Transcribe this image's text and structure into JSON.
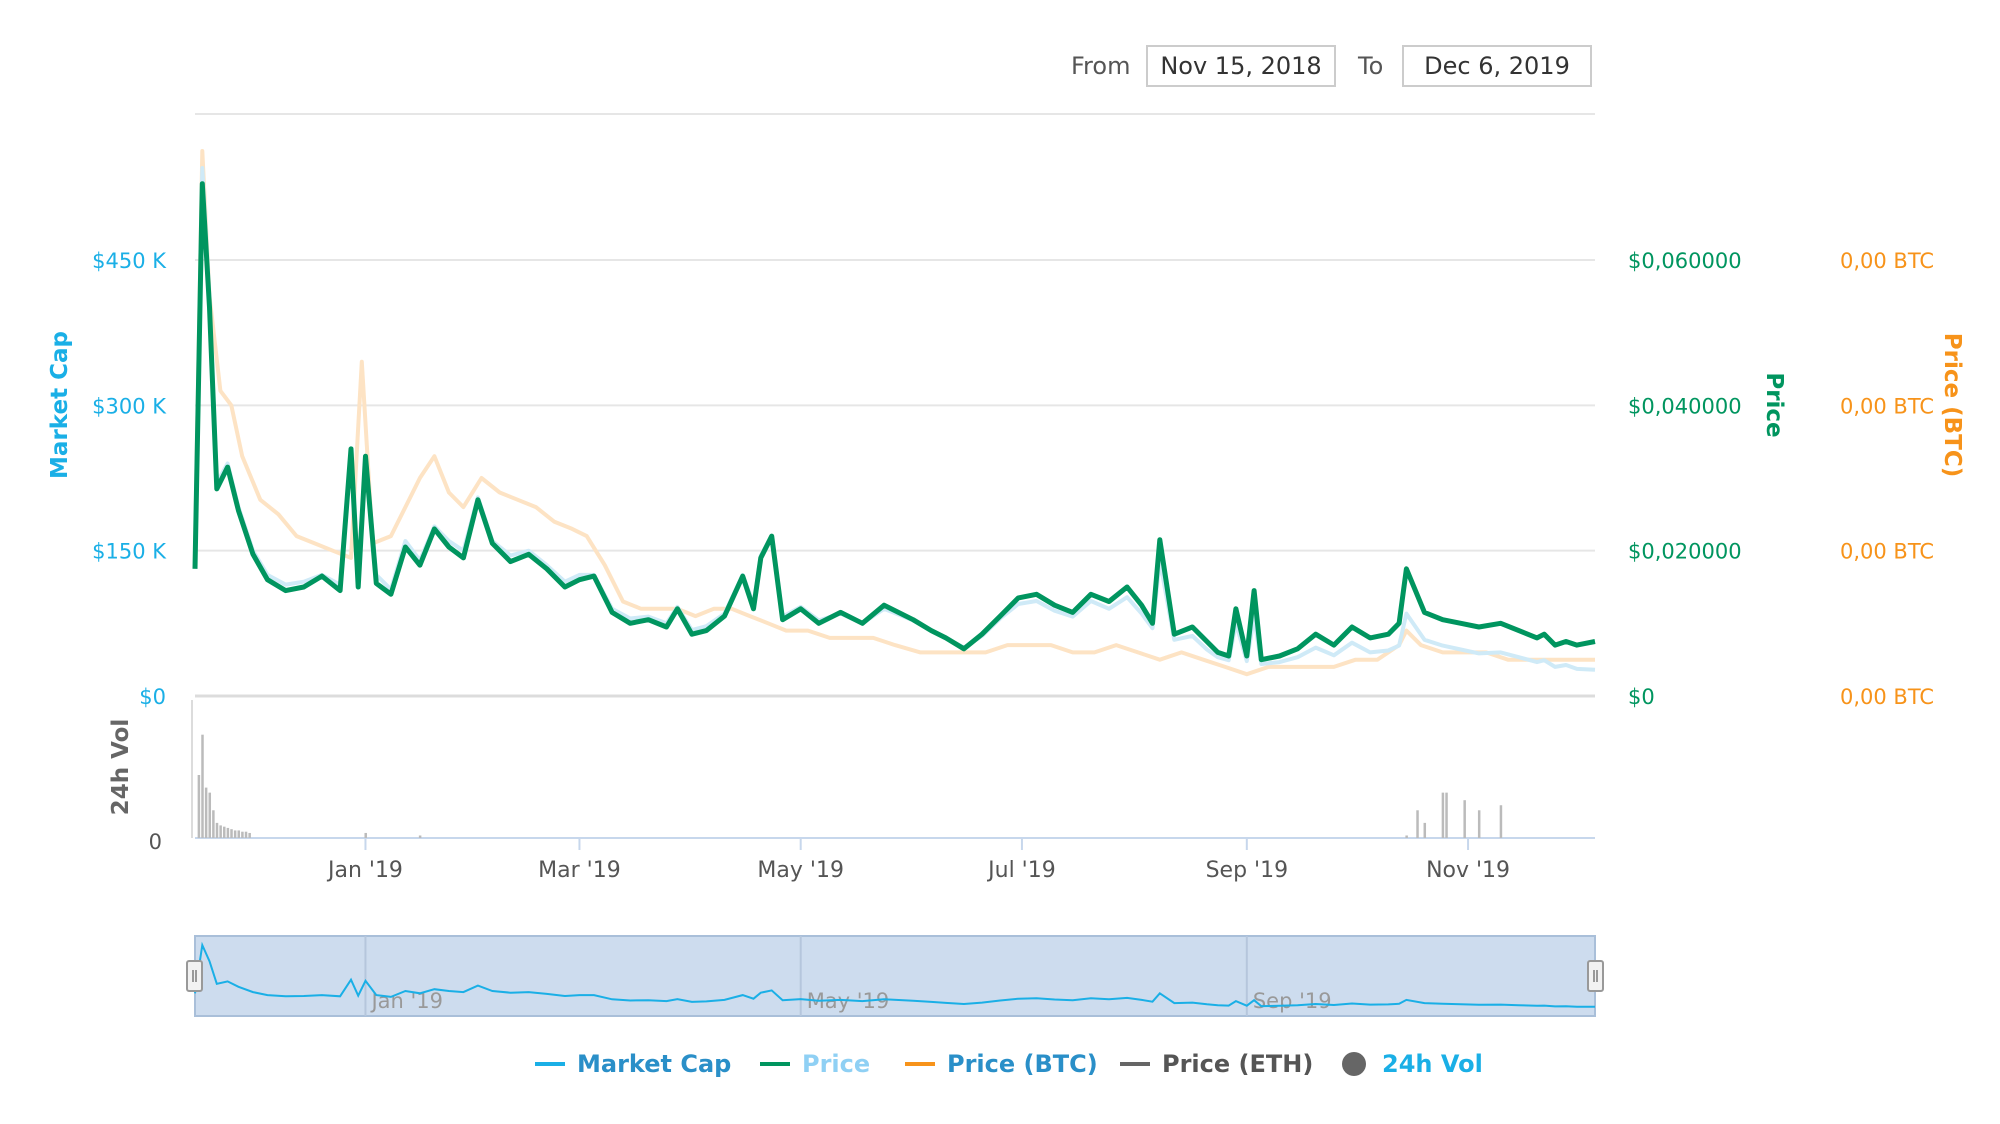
{
  "date_range": {
    "from_label": "From",
    "from_value": "Nov 15, 2018",
    "to_label": "To",
    "to_value": "Dec 6, 2019"
  },
  "colors": {
    "market_cap": "#1aafe6",
    "market_cap_area": "#cfeaf7",
    "price": "#00955f",
    "price_btc": "#f7931a",
    "price_btc_line": "#fde3c4",
    "price_eth": "#666666",
    "volume": "#bbbbbb",
    "navigator_fill": "#cddcee",
    "grid": "#e6e6e6"
  },
  "axis_titles": {
    "left": "Market Cap",
    "right_price": "Price",
    "right_btc": "Price (BTC)",
    "volume": "24h Vol"
  },
  "legend": [
    {
      "label": "Market Cap",
      "color": "#1aafe6",
      "symbol": "line"
    },
    {
      "label": "Price",
      "color": "#00955f",
      "symbol": "line",
      "label_color": "#8fd0f4"
    },
    {
      "label": "Price (BTC)",
      "color": "#f7931a",
      "symbol": "line"
    },
    {
      "label": "Price (ETH)",
      "color": "#666666",
      "symbol": "line"
    },
    {
      "label": "24h Vol",
      "color": "#666666",
      "symbol": "dot"
    }
  ],
  "chart_data": {
    "type": "line",
    "x_range": [
      "2018-11-15",
      "2019-12-06"
    ],
    "x_tick_labels": [
      "Jan '19",
      "Mar '19",
      "May '19",
      "Jul '19",
      "Sep '19",
      "Nov '19"
    ],
    "x_tick_dates": [
      "2019-01-01",
      "2019-03-01",
      "2019-05-01",
      "2019-07-01",
      "2019-09-01",
      "2019-11-01"
    ],
    "navigator_tick_labels": [
      "Jan '19",
      "May '19",
      "Sep '19"
    ],
    "navigator_tick_dates": [
      "2019-01-01",
      "2019-05-01",
      "2019-09-01"
    ],
    "left_axis": {
      "label": "Market Cap",
      "ylim": [
        0,
        600000
      ],
      "tick_values": [
        0,
        150000,
        300000,
        450000
      ],
      "tick_labels": [
        "$0",
        "$150 K",
        "$300 K",
        "$450 K"
      ]
    },
    "right_axis_price": {
      "label": "Price",
      "ylim": [
        0,
        0.08
      ],
      "tick_values": [
        0,
        0.02,
        0.04,
        0.06
      ],
      "tick_labels": [
        "$0",
        "$0,020000",
        "$0,040000",
        "$0,060000"
      ]
    },
    "right_axis_btc": {
      "label": "Price (BTC)",
      "tick_labels": [
        "0,00 BTC",
        "0,00 BTC",
        "0,00 BTC",
        "0,00 BTC"
      ]
    },
    "volume_axis": {
      "label": "24h Vol",
      "tick_labels": [
        "0"
      ]
    },
    "grid": true,
    "legend_position": "bottom",
    "series": [
      {
        "name": "Price",
        "axis": "right_price",
        "x": [
          "2018-11-15",
          "2018-11-17",
          "2018-11-19",
          "2018-11-21",
          "2018-11-24",
          "2018-11-27",
          "2018-12-01",
          "2018-12-05",
          "2018-12-10",
          "2018-12-15",
          "2018-12-20",
          "2018-12-25",
          "2018-12-28",
          "2018-12-30",
          "2019-01-01",
          "2019-01-04",
          "2019-01-08",
          "2019-01-12",
          "2019-01-16",
          "2019-01-20",
          "2019-01-24",
          "2019-01-28",
          "2019-02-01",
          "2019-02-05",
          "2019-02-10",
          "2019-02-15",
          "2019-02-20",
          "2019-02-25",
          "2019-03-01",
          "2019-03-05",
          "2019-03-10",
          "2019-03-15",
          "2019-03-20",
          "2019-03-25",
          "2019-03-28",
          "2019-04-01",
          "2019-04-05",
          "2019-04-10",
          "2019-04-15",
          "2019-04-18",
          "2019-04-20",
          "2019-04-23",
          "2019-04-26",
          "2019-05-01",
          "2019-05-06",
          "2019-05-12",
          "2019-05-18",
          "2019-05-24",
          "2019-06-01",
          "2019-06-06",
          "2019-06-10",
          "2019-06-15",
          "2019-06-20",
          "2019-06-25",
          "2019-06-30",
          "2019-07-05",
          "2019-07-10",
          "2019-07-15",
          "2019-07-20",
          "2019-07-25",
          "2019-07-30",
          "2019-08-03",
          "2019-08-06",
          "2019-08-08",
          "2019-08-12",
          "2019-08-17",
          "2019-08-21",
          "2019-08-24",
          "2019-08-27",
          "2019-08-29",
          "2019-09-01",
          "2019-09-03",
          "2019-09-05",
          "2019-09-10",
          "2019-09-15",
          "2019-09-20",
          "2019-09-25",
          "2019-09-30",
          "2019-10-05",
          "2019-10-10",
          "2019-10-13",
          "2019-10-15",
          "2019-10-20",
          "2019-10-25",
          "2019-10-30",
          "2019-11-04",
          "2019-11-10",
          "2019-11-15",
          "2019-11-20",
          "2019-11-22",
          "2019-11-25",
          "2019-11-28",
          "2019-12-01",
          "2019-12-06"
        ],
        "y": [
          0.0175,
          0.0705,
          0.0535,
          0.0285,
          0.0315,
          0.0255,
          0.0195,
          0.016,
          0.0145,
          0.015,
          0.0165,
          0.0145,
          0.034,
          0.015,
          0.033,
          0.0155,
          0.014,
          0.0205,
          0.018,
          0.023,
          0.0205,
          0.019,
          0.027,
          0.021,
          0.0185,
          0.0195,
          0.0175,
          0.015,
          0.016,
          0.0165,
          0.0115,
          0.01,
          0.0105,
          0.0095,
          0.012,
          0.0085,
          0.009,
          0.011,
          0.0165,
          0.012,
          0.019,
          0.022,
          0.0105,
          0.012,
          0.01,
          0.0115,
          0.01,
          0.0125,
          0.0105,
          0.009,
          0.008,
          0.0065,
          0.0085,
          0.011,
          0.0135,
          0.014,
          0.0125,
          0.0115,
          0.014,
          0.013,
          0.015,
          0.0125,
          0.01,
          0.0215,
          0.0085,
          0.0095,
          0.0075,
          0.006,
          0.0055,
          0.012,
          0.0055,
          0.0145,
          0.005,
          0.0055,
          0.0065,
          0.0085,
          0.007,
          0.0095,
          0.008,
          0.0085,
          0.01,
          0.0175,
          0.0115,
          0.0105,
          0.01,
          0.0095,
          0.01,
          0.009,
          0.008,
          0.0085,
          0.007,
          0.0075,
          0.007,
          0.0075
        ]
      },
      {
        "name": "Market Cap",
        "axis": "left",
        "x": [
          "2018-11-15",
          "2018-11-17",
          "2018-11-19",
          "2018-11-21",
          "2018-11-24",
          "2018-11-27",
          "2018-12-01",
          "2018-12-05",
          "2018-12-10",
          "2018-12-15",
          "2018-12-20",
          "2018-12-25",
          "2018-12-28",
          "2018-12-30",
          "2019-01-01",
          "2019-01-04",
          "2019-01-08",
          "2019-01-12",
          "2019-01-16",
          "2019-01-20",
          "2019-01-24",
          "2019-01-28",
          "2019-02-01",
          "2019-02-05",
          "2019-02-10",
          "2019-02-15",
          "2019-02-20",
          "2019-02-25",
          "2019-03-01",
          "2019-03-05",
          "2019-03-10",
          "2019-03-15",
          "2019-03-20",
          "2019-03-25",
          "2019-03-28",
          "2019-04-01",
          "2019-04-05",
          "2019-04-10",
          "2019-04-15",
          "2019-04-18",
          "2019-04-20",
          "2019-04-23",
          "2019-04-26",
          "2019-05-01",
          "2019-05-06",
          "2019-05-12",
          "2019-05-18",
          "2019-05-24",
          "2019-06-01",
          "2019-06-06",
          "2019-06-10",
          "2019-06-15",
          "2019-06-20",
          "2019-06-25",
          "2019-06-30",
          "2019-07-05",
          "2019-07-10",
          "2019-07-15",
          "2019-07-20",
          "2019-07-25",
          "2019-07-30",
          "2019-08-03",
          "2019-08-06",
          "2019-08-08",
          "2019-08-12",
          "2019-08-17",
          "2019-08-21",
          "2019-08-24",
          "2019-08-27",
          "2019-08-29",
          "2019-09-01",
          "2019-09-03",
          "2019-09-05",
          "2019-09-10",
          "2019-09-15",
          "2019-09-20",
          "2019-09-25",
          "2019-09-30",
          "2019-10-05",
          "2019-10-10",
          "2019-10-13",
          "2019-10-15",
          "2019-10-20",
          "2019-10-25",
          "2019-10-30",
          "2019-11-04",
          "2019-11-10",
          "2019-11-15",
          "2019-11-20",
          "2019-11-22",
          "2019-11-25",
          "2019-11-28",
          "2019-12-01",
          "2019-12-06"
        ],
        "y": [
          140000,
          545000,
          410000,
          220000,
          240000,
          195000,
          150000,
          125000,
          115000,
          118000,
          125000,
          115000,
          255000,
          120000,
          245000,
          125000,
          110000,
          160000,
          140000,
          175000,
          160000,
          150000,
          205000,
          160000,
          145000,
          150000,
          135000,
          118000,
          125000,
          125000,
          90000,
          80000,
          82000,
          75000,
          92000,
          68000,
          72000,
          85000,
          125000,
          95000,
          145000,
          165000,
          82000,
          92000,
          78000,
          85000,
          75000,
          90000,
          78000,
          68000,
          60000,
          50000,
          62000,
          80000,
          95000,
          98000,
          88000,
          82000,
          98000,
          90000,
          102000,
          85000,
          70000,
          140000,
          58000,
          62000,
          48000,
          40000,
          37000,
          75000,
          36000,
          82000,
          33000,
          35000,
          40000,
          50000,
          42000,
          55000,
          45000,
          47000,
          52000,
          85000,
          58000,
          52000,
          48000,
          44000,
          45000,
          40000,
          35000,
          37000,
          30000,
          32000,
          28000,
          27000
        ]
      },
      {
        "name": "Price (BTC)",
        "axis": "right_btc",
        "x": [
          "2018-11-15",
          "2018-11-17",
          "2018-11-19",
          "2018-11-22",
          "2018-11-25",
          "2018-11-28",
          "2018-12-03",
          "2018-12-08",
          "2018-12-13",
          "2018-12-18",
          "2018-12-23",
          "2018-12-28",
          "2018-12-31",
          "2019-01-03",
          "2019-01-08",
          "2019-01-12",
          "2019-01-16",
          "2019-01-20",
          "2019-01-24",
          "2019-01-28",
          "2019-02-02",
          "2019-02-07",
          "2019-02-12",
          "2019-02-17",
          "2019-02-22",
          "2019-02-27",
          "2019-03-03",
          "2019-03-08",
          "2019-03-13",
          "2019-03-18",
          "2019-03-23",
          "2019-03-28",
          "2019-04-02",
          "2019-04-07",
          "2019-04-12",
          "2019-04-17",
          "2019-04-22",
          "2019-04-27",
          "2019-05-03",
          "2019-05-09",
          "2019-05-15",
          "2019-05-21",
          "2019-05-27",
          "2019-06-03",
          "2019-06-09",
          "2019-06-15",
          "2019-06-21",
          "2019-06-27",
          "2019-07-03",
          "2019-07-09",
          "2019-07-15",
          "2019-07-21",
          "2019-07-27",
          "2019-08-02",
          "2019-08-08",
          "2019-08-14",
          "2019-08-20",
          "2019-08-26",
          "2019-09-01",
          "2019-09-07",
          "2019-09-13",
          "2019-09-19",
          "2019-09-25",
          "2019-10-01",
          "2019-10-07",
          "2019-10-13",
          "2019-10-15",
          "2019-10-19",
          "2019-10-25",
          "2019-10-31",
          "2019-11-06",
          "2019-11-12",
          "2019-11-18",
          "2019-11-24",
          "2019-11-30",
          "2019-12-06"
        ],
        "y_relative": [
          0.02,
          0.075,
          0.055,
          0.042,
          0.04,
          0.033,
          0.027,
          0.025,
          0.022,
          0.021,
          0.02,
          0.019,
          0.046,
          0.021,
          0.022,
          0.026,
          0.03,
          0.033,
          0.028,
          0.026,
          0.03,
          0.028,
          0.027,
          0.026,
          0.024,
          0.023,
          0.022,
          0.018,
          0.013,
          0.012,
          0.012,
          0.012,
          0.011,
          0.012,
          0.012,
          0.011,
          0.01,
          0.009,
          0.009,
          0.008,
          0.008,
          0.008,
          0.007,
          0.006,
          0.006,
          0.006,
          0.006,
          0.007,
          0.007,
          0.007,
          0.006,
          0.006,
          0.007,
          0.006,
          0.005,
          0.006,
          0.005,
          0.004,
          0.003,
          0.004,
          0.004,
          0.004,
          0.004,
          0.005,
          0.005,
          0.007,
          0.009,
          0.007,
          0.006,
          0.006,
          0.006,
          0.005,
          0.005,
          0.005,
          0.005,
          0.005
        ]
      },
      {
        "name": "24h Vol",
        "axis": "volume",
        "type": "bar",
        "x": [
          "2018-11-16",
          "2018-11-17",
          "2018-11-18",
          "2018-11-19",
          "2018-11-20",
          "2018-11-21",
          "2018-11-22",
          "2018-11-23",
          "2018-11-24",
          "2018-11-25",
          "2018-11-26",
          "2018-11-27",
          "2018-11-28",
          "2018-11-29",
          "2018-11-30",
          "2019-01-01",
          "2019-01-16",
          "2019-10-15",
          "2019-10-18",
          "2019-10-20",
          "2019-10-25",
          "2019-10-26",
          "2019-10-31",
          "2019-11-04",
          "2019-11-10"
        ],
        "relative_values": [
          0.5,
          0.82,
          0.4,
          0.36,
          0.22,
          0.12,
          0.1,
          0.09,
          0.08,
          0.07,
          0.06,
          0.06,
          0.05,
          0.05,
          0.04,
          0.04,
          0.02,
          0.02,
          0.22,
          0.12,
          0.36,
          0.36,
          0.3,
          0.22,
          0.26
        ]
      }
    ]
  }
}
